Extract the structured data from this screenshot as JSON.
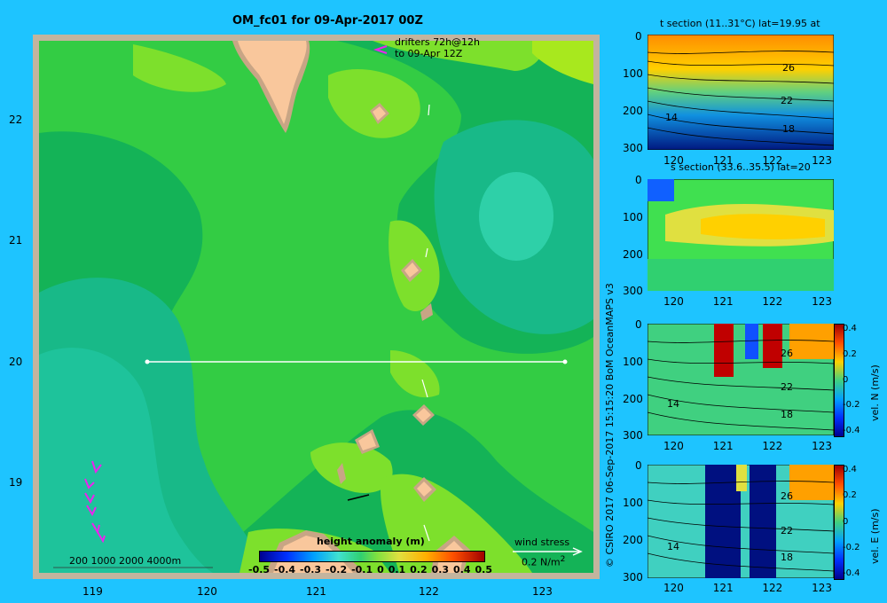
{
  "main": {
    "title": "OM_fc01 for 09-Apr-2017 00Z",
    "drifters_line1": "drifters 72h@12h",
    "drifters_line2": "to 09-Apr 12Z",
    "x_ticks": [
      "119",
      "120",
      "121",
      "122",
      "123"
    ],
    "y_ticks": [
      "22",
      "21",
      "20",
      "19"
    ],
    "depth_legend": "200  1000  2000  4000m",
    "wind_label": "wind stress",
    "wind_value": "0.2 N/m",
    "wind_exp": "2",
    "colorbar_title": "height anomaly  (m)",
    "colorbar_ticks": [
      "-0.5",
      "-0.4",
      "-0.3",
      "-0.2",
      "-0.1",
      "0",
      "0.1",
      "0.2",
      "0.3",
      "0.4",
      "0.5"
    ]
  },
  "credit": "© CSIRO 2017   06-Sep-2017 15:15:20 BoM OceanMAPS v3",
  "panels": {
    "t_title": "t section (11..31°C) lat=19.95 at",
    "s_title": "s section (33.6..35.5) lat=20",
    "depth_ticks": [
      "0",
      "100",
      "200",
      "300"
    ],
    "lon_ticks": [
      "120",
      "121",
      "122",
      "123"
    ],
    "contour_labels": [
      "26",
      "22",
      "18",
      "14"
    ],
    "vn_label": "vel. N  (m/s)",
    "ve_label": "vel. E  (m/s)",
    "vel_ticks": [
      "0.4",
      "0.2",
      "0",
      "-0.2",
      "-0.4"
    ]
  },
  "colors": {
    "background": "#1ec4ff",
    "land": "#f9c79c",
    "shelf": "#c8a585",
    "frame": "#c3b49e",
    "drifter": "#ee22ee"
  }
}
